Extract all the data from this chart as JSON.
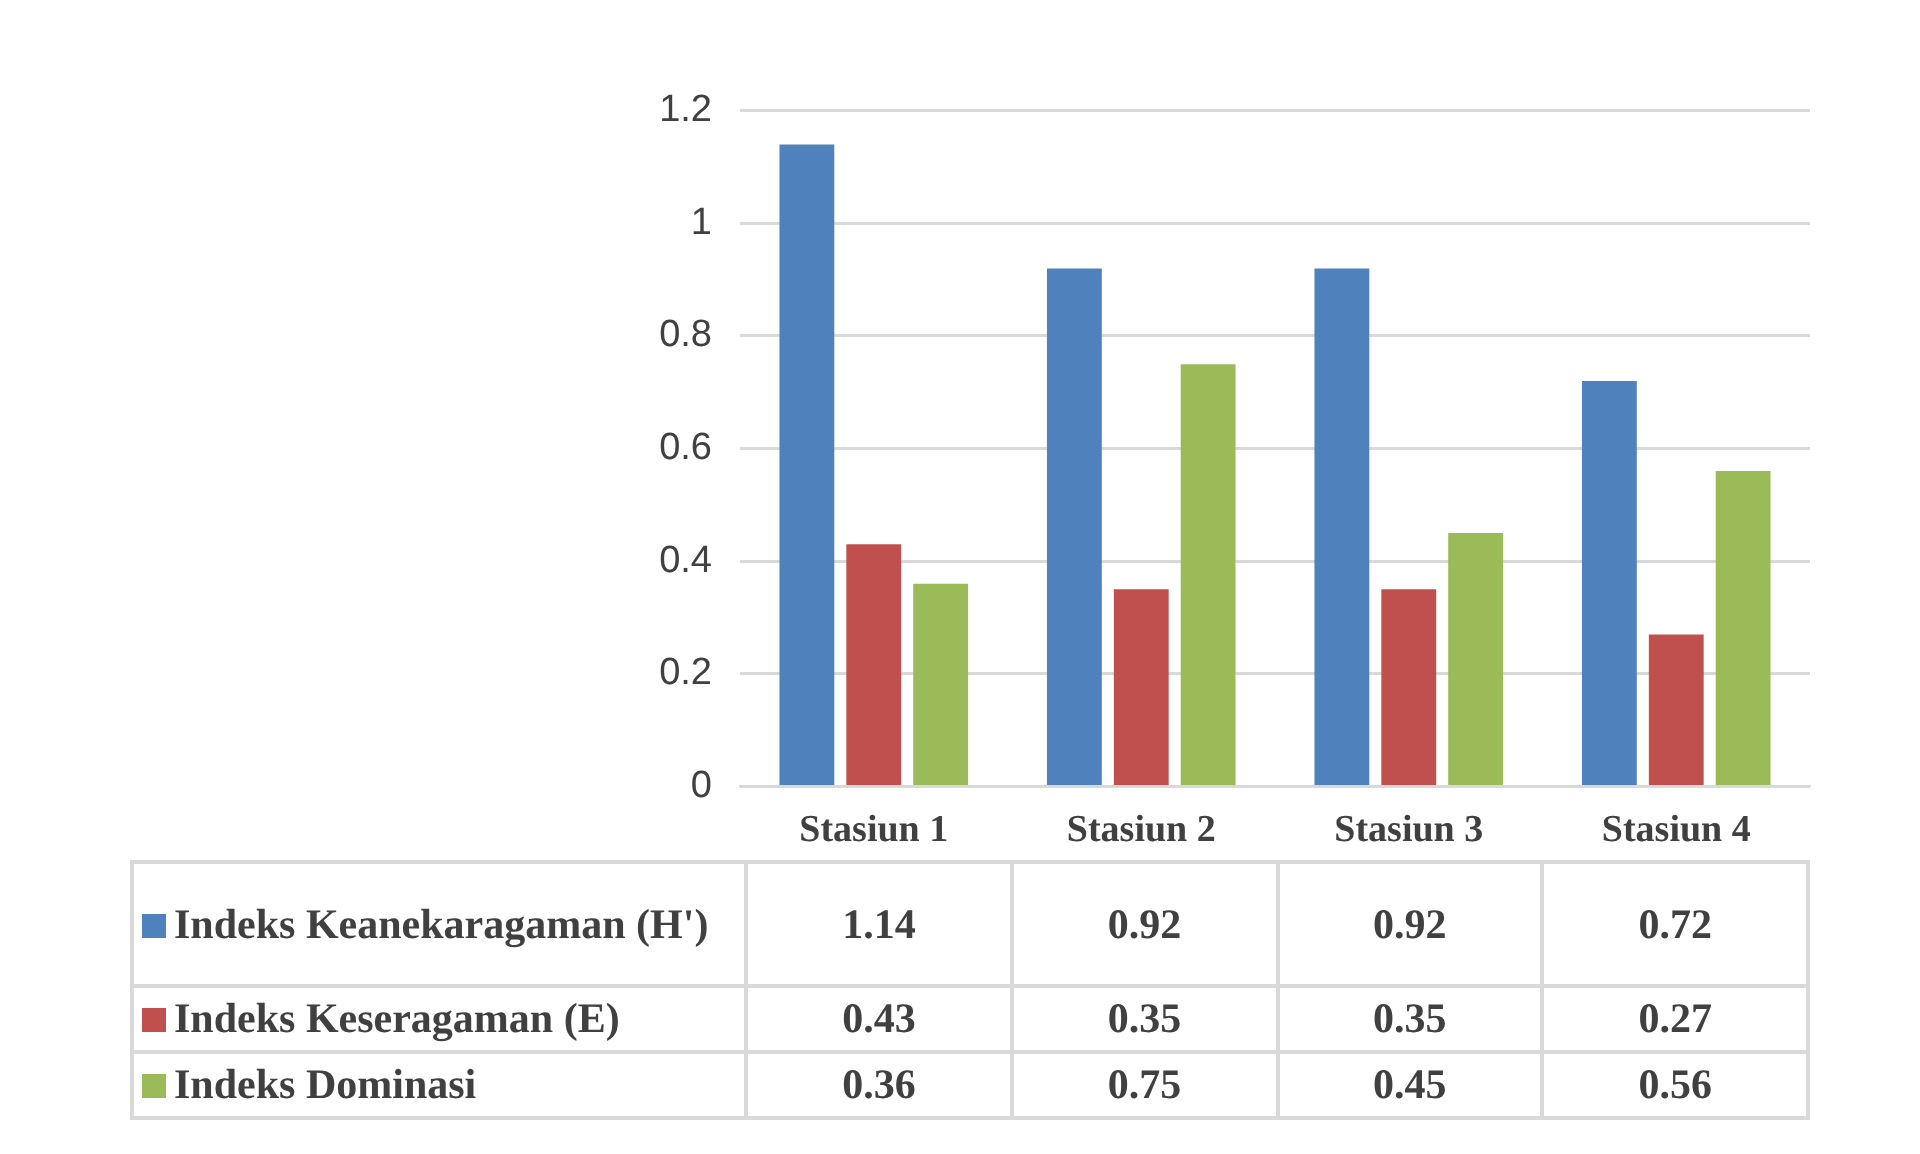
{
  "chart_data": {
    "type": "bar",
    "categories": [
      "Stasiun 1",
      "Stasiun 2",
      "Stasiun 3",
      "Stasiun 4"
    ],
    "series": [
      {
        "name": "Indeks Keanekaragaman (H')",
        "color": "#4f81bd",
        "values": [
          1.14,
          0.92,
          0.92,
          0.72
        ]
      },
      {
        "name": "Indeks Keseragaman (E)",
        "color": "#c0504d",
        "values": [
          0.43,
          0.35,
          0.35,
          0.27
        ]
      },
      {
        "name": "Indeks Dominasi",
        "color": "#9bbb59",
        "values": [
          0.36,
          0.75,
          0.45,
          0.56
        ]
      }
    ],
    "ylim": [
      0,
      1.2
    ],
    "yticks": [
      0,
      0.2,
      0.4,
      0.6,
      0.8,
      1,
      1.2
    ],
    "grid": "y",
    "legend": "bottom",
    "data_labels": true
  }
}
